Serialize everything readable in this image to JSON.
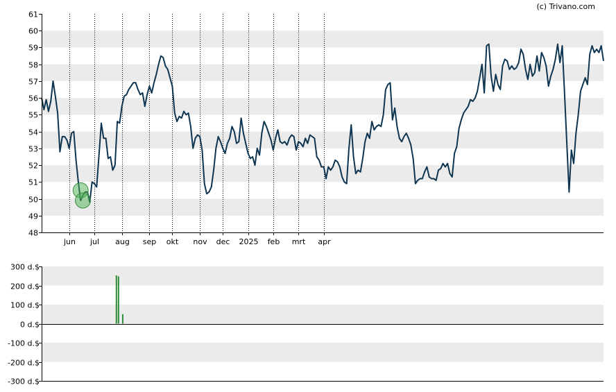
{
  "credit": "(c) Trivano.com",
  "colors": {
    "price_line": "#0d3450",
    "band": "#ebebeb",
    "axis": "#000000",
    "grid_vertical": "#000000",
    "marker_fill": "#4caf50",
    "volume_bar": "#2e8b3a"
  },
  "chart_data": [
    {
      "type": "line",
      "title": "",
      "xlabel": "",
      "ylabel": "",
      "ylim": [
        48,
        61
      ],
      "y_ticks": [
        "48",
        "49",
        "50",
        "51",
        "52",
        "53",
        "54",
        "55",
        "56",
        "57",
        "58",
        "59",
        "60",
        "61"
      ],
      "x_ticks": [
        "jun",
        "jul",
        "aug",
        "sep",
        "okt",
        "nov",
        "dec",
        "2025",
        "feb",
        "mrt",
        "apr"
      ],
      "x_tick_index": [
        12,
        23,
        35,
        47,
        57,
        69,
        79,
        90,
        101,
        112,
        123
      ],
      "grid": "alternating horizontal bands, dotted vertical lines at month ticks",
      "series": [
        {
          "values": [
            56,
            55.3,
            55.9,
            55.2,
            55.8,
            57,
            56.1,
            55.1,
            52.8,
            53.7,
            53.7,
            53.5,
            53,
            53.9,
            54,
            52.3,
            51,
            49.9,
            50.2,
            50.4,
            50.4,
            49.8,
            51,
            50.9,
            50.7,
            52.6,
            54.5,
            53.6,
            53.6,
            52.4,
            52.5,
            51.7,
            52,
            54.6,
            54.5,
            55.5,
            56.1,
            56.2,
            56.5,
            56.7,
            56.9,
            56.9,
            56.5,
            56.2,
            56.3,
            55.5,
            56.2,
            56.7,
            56.3,
            56.9,
            57.4,
            58,
            58.5,
            58.4,
            57.9,
            57.7,
            57.2,
            56.7,
            55.1,
            54.6,
            54.9,
            54.8,
            55.2,
            55,
            55.1,
            54.3,
            53,
            53.6,
            53.8,
            53.7,
            52.9,
            50.9,
            50.3,
            50.4,
            50.7,
            51.7,
            53,
            53.7,
            53.4,
            53,
            52.7,
            53.3,
            53.6,
            54.3,
            54,
            53.3,
            53.4,
            54.8,
            53.9,
            53.3,
            52.7,
            52.4,
            52.5,
            52,
            53,
            52.6,
            53.9,
            54.6,
            54.3,
            53.9,
            53.5,
            52.9,
            53.6,
            54.1,
            53.4,
            53.3,
            53.4,
            53.2,
            53.6,
            53.8,
            53.7,
            52.9,
            53.4,
            53.3,
            53.1,
            53.6,
            53.3,
            53.8,
            53.7,
            53.6,
            52.5,
            52.3,
            51.9,
            51.9,
            51.2,
            51.9,
            51.7,
            51.9,
            52.3,
            52.2,
            51.9,
            51.3,
            51,
            50.9,
            53,
            54.4,
            52.5,
            51.5,
            51.7,
            51.6,
            52.4,
            53.4,
            53.9,
            53.6,
            54.6,
            54.1,
            54.3,
            54.4,
            54.3,
            55,
            56.5,
            56.8,
            56.9,
            54.7,
            55.4,
            54.3,
            53.6,
            53.4,
            53.7,
            53.9,
            53.6,
            53.2,
            52.4,
            50.9,
            51.1,
            51.2,
            51.2,
            51.6,
            51.9,
            51.3,
            51.2,
            51.2,
            51.1,
            51.7,
            51.8,
            52.1,
            51.9,
            52.1,
            51.5,
            51.3,
            52.7,
            53.1,
            54.2,
            54.7,
            55.1,
            55.3,
            55.5,
            55.9,
            55.8,
            56,
            56.4,
            57.2,
            58,
            56.3,
            59.1,
            59.2,
            57.3,
            56.4,
            57.4,
            56.8,
            56.5,
            57.9,
            58.3,
            58.2,
            57.7,
            57.9,
            57.7,
            57.8,
            58.1,
            58.9,
            58.6,
            57.7,
            57.1,
            58,
            57.3,
            57.5,
            58.5,
            57.6,
            58.7,
            58.4,
            57.9,
            56.7,
            57.3,
            57.7,
            58.3,
            59.2,
            58.1,
            59.1,
            56.3,
            53.3,
            50.4,
            52.9,
            52.1,
            53.9,
            55,
            56.4,
            56.8,
            57.2,
            56.8,
            58.6,
            59.1,
            58.7,
            58.9,
            58.7,
            59.1,
            58.2
          ]
        }
      ],
      "markers": [
        {
          "label": "buy",
          "index": 17,
          "value": 50.5
        },
        {
          "label": "buy",
          "index": 18,
          "value": 49.9
        }
      ]
    },
    {
      "type": "bar",
      "title": "",
      "xlabel": "",
      "ylabel": "",
      "ylim": [
        -300,
        300
      ],
      "y_ticks": [
        "300 d.$",
        "200 d.$",
        "100 d.$",
        "0 d.$",
        "-100 d.$",
        "-200 d.$",
        "-300 d.$"
      ],
      "x_span": [
        0,
        133
      ],
      "bars": [
        {
          "index": 17.7,
          "value": 253
        },
        {
          "index": 18.2,
          "value": 248
        },
        {
          "index": 19.2,
          "value": 50
        }
      ]
    }
  ]
}
